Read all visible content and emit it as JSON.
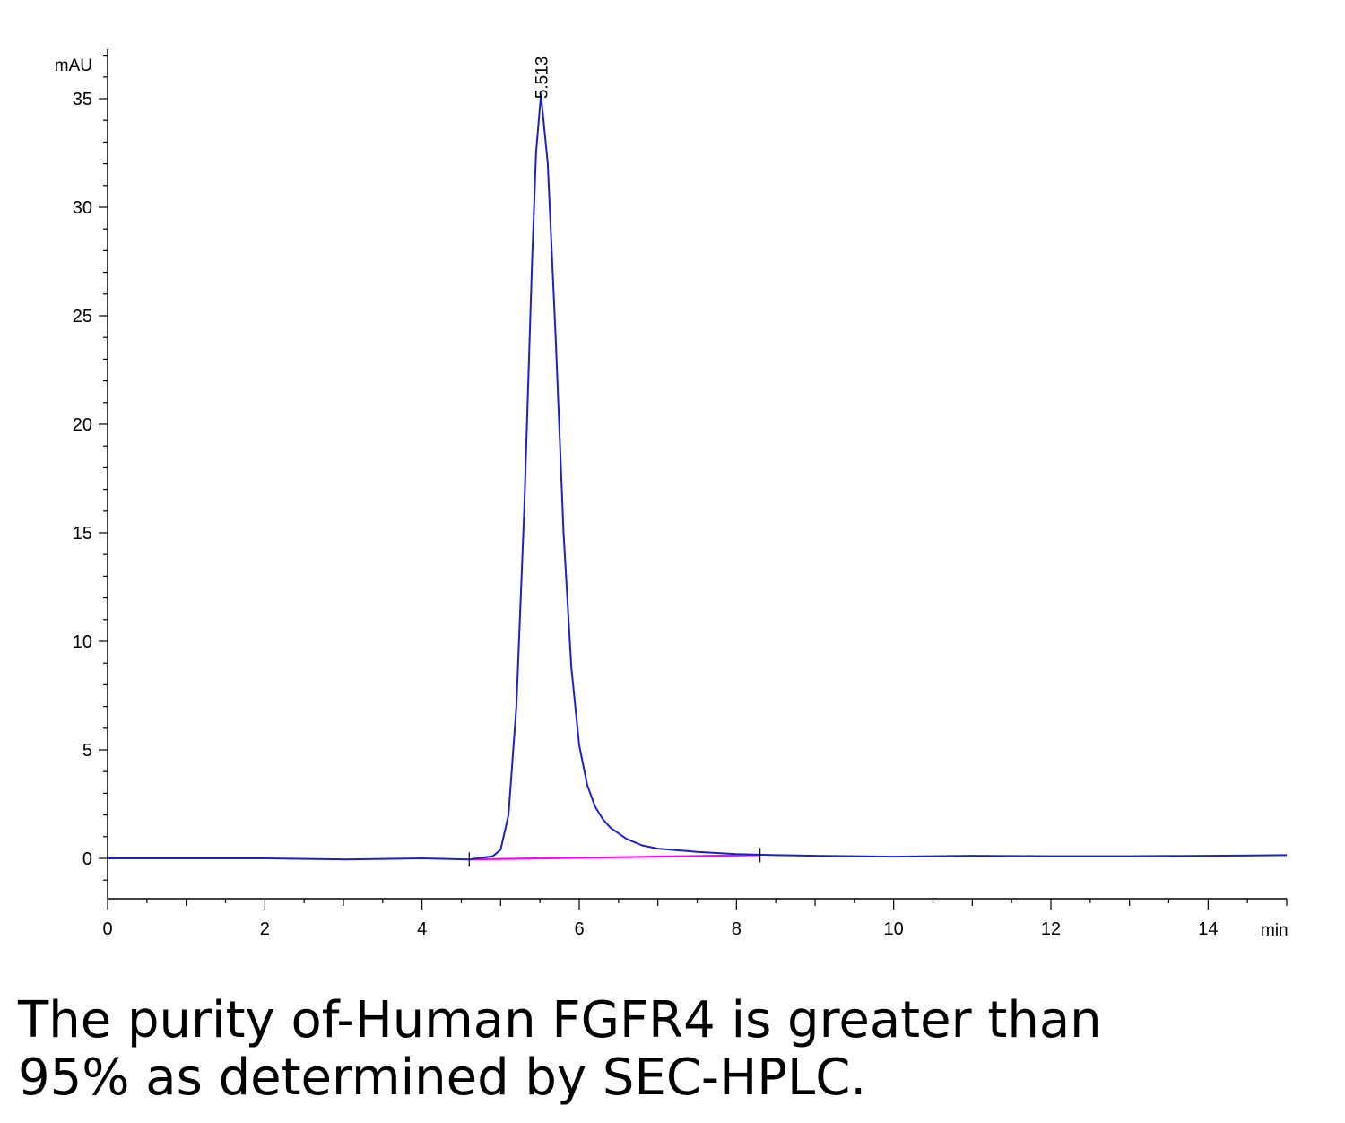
{
  "chart_data": {
    "type": "line",
    "ylabel": "mAU",
    "xlabel": "min",
    "xlim": [
      0,
      15
    ],
    "ylim": [
      -1.8,
      37.5
    ],
    "x_ticks": [
      0,
      2,
      4,
      6,
      8,
      10,
      12,
      14
    ],
    "y_ticks": [
      0,
      5,
      10,
      15,
      20,
      25,
      30,
      35
    ],
    "x_tick_labels": [
      "0",
      "2",
      "4",
      "6",
      "8",
      "10",
      "12",
      "14"
    ],
    "y_tick_labels": [
      "0",
      "5",
      "10",
      "15",
      "20",
      "25",
      "30",
      "35"
    ],
    "grid": false,
    "legend": "none",
    "peak_label": "5.513",
    "peak": {
      "x": 5.513,
      "y": 35.2
    },
    "series": [
      {
        "color": "#1f1fc8",
        "x": [
          0,
          1.0,
          2.0,
          3.0,
          4.0,
          4.6,
          4.9,
          5.0,
          5.1,
          5.2,
          5.3,
          5.4,
          5.45,
          5.513,
          5.6,
          5.7,
          5.8,
          5.9,
          6.0,
          6.1,
          6.2,
          6.3,
          6.4,
          6.6,
          6.8,
          7.0,
          7.5,
          8.0,
          8.5,
          9.0,
          10.0,
          11.0,
          12.0,
          13.0,
          14.0,
          15.0
        ],
        "y": [
          0.0,
          0.0,
          0.0,
          -0.05,
          0.0,
          -0.05,
          0.1,
          0.4,
          2.0,
          7.0,
          16.0,
          27.5,
          32.5,
          35.2,
          32.0,
          24.0,
          15.0,
          8.8,
          5.2,
          3.4,
          2.4,
          1.8,
          1.4,
          0.9,
          0.6,
          0.45,
          0.3,
          0.2,
          0.15,
          0.12,
          0.08,
          0.12,
          0.1,
          0.1,
          0.12,
          0.15
        ]
      },
      {
        "color": "#ff00ff",
        "x": [
          4.6,
          8.3
        ],
        "y": [
          -0.05,
          0.15
        ]
      }
    ]
  },
  "caption": {
    "line1": "The purity of-Human FGFR4 is greater than",
    "line2": "95% as determined by SEC-HPLC."
  }
}
